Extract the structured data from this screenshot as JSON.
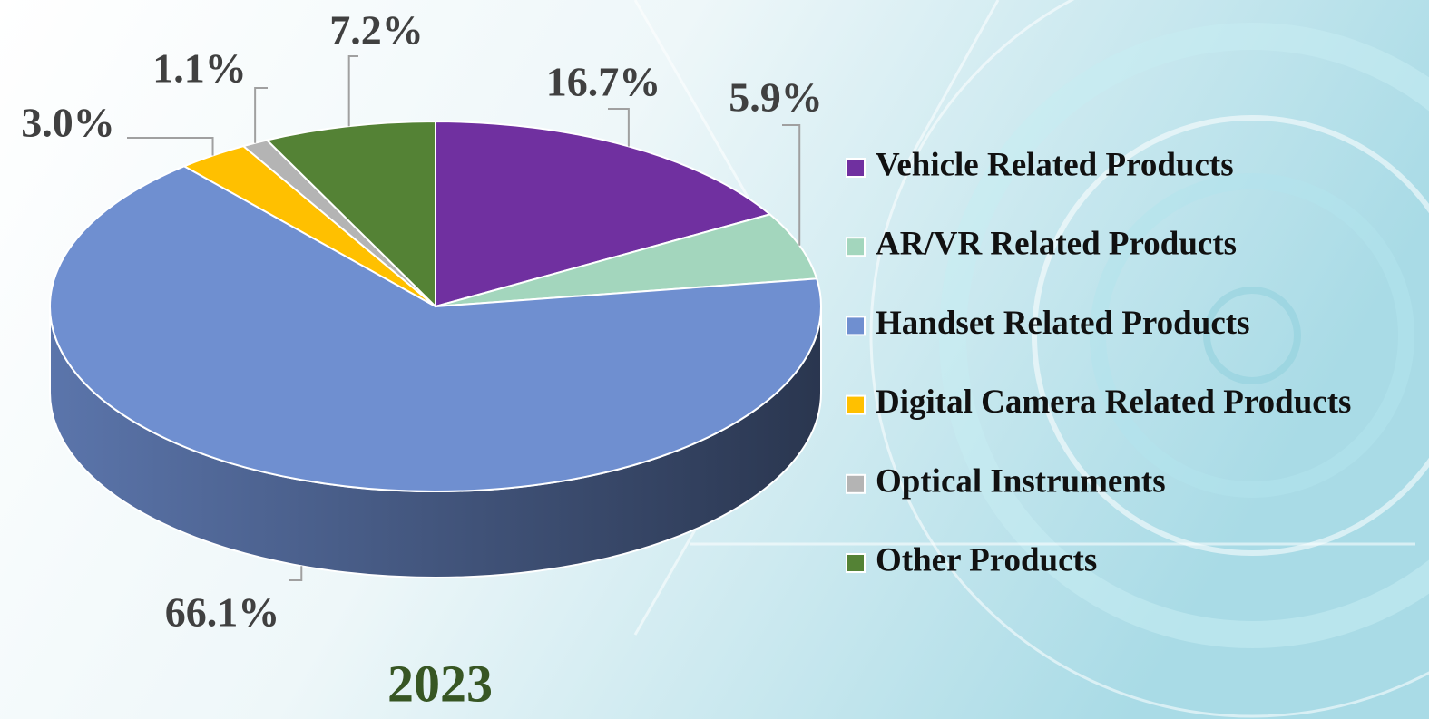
{
  "chart_data": {
    "type": "pie",
    "title": "2023",
    "categories": [
      "Vehicle Related Products",
      "AR/VR Related Products",
      "Handset Related Products",
      "Digital Camera Related Products",
      "Optical Instruments",
      "Other Products"
    ],
    "values": [
      16.7,
      5.9,
      66.1,
      3.0,
      1.1,
      7.2
    ],
    "value_labels": [
      "16.7%",
      "5.9%",
      "66.1%",
      "3.0%",
      "1.1%",
      "7.2%"
    ],
    "colors": [
      "#7030a0",
      "#a3d6bd",
      "#6f8fd0",
      "#ffc000",
      "#b4b4b4",
      "#548235"
    ],
    "legend": "right"
  }
}
